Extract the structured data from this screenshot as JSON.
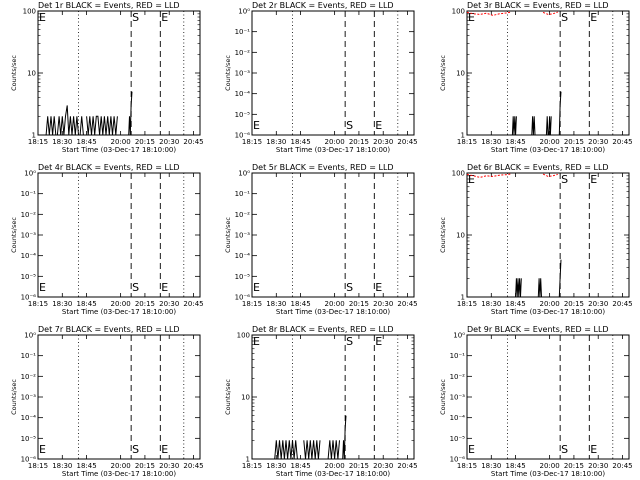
{
  "colors": {
    "events": "#000000",
    "lld": "#ff0000"
  },
  "chart_data": [
    {
      "type": "line",
      "panel": "1r",
      "title": "Det 1r BLACK = Events, RED = LLD",
      "ylabel": "Counts/sec",
      "xlabel": "Start Time (03-Dec-17 18:10:00)",
      "xticks": [
        "18:15",
        "18:30",
        "18:45",
        "20:00",
        "20:15",
        "20:30",
        "20:45"
      ],
      "yscale": "log",
      "ylim": [
        1,
        100
      ],
      "yticks": [
        "1",
        "10",
        "100"
      ],
      "markers": [
        {
          "label": "E",
          "x": 0.0,
          "top": true
        },
        {
          "label": "S",
          "x": 0.575,
          "top": true
        },
        {
          "label": "E",
          "x": 0.755,
          "top": true
        }
      ],
      "dotted_x": [
        0.25,
        0.9
      ],
      "series": [
        {
          "name": "BLACK = Events",
          "color": "#000000",
          "segments": [
            {
              "x": [
                0.05,
                0.06,
                0.07,
                0.08,
                0.09,
                0.1,
                0.11,
                0.12,
                0.13,
                0.14,
                0.15,
                0.16,
                0.17,
                0.18,
                0.19,
                0.2,
                0.21,
                0.22,
                0.23,
                0.24,
                0.25,
                0.26,
                0.27,
                0.28
              ],
              "y": [
                1,
                2,
                1,
                2,
                1,
                2,
                1,
                1,
                2,
                1,
                2,
                1,
                2,
                3,
                1,
                2,
                1,
                2,
                1,
                2,
                1,
                1,
                2,
                1
              ]
            },
            {
              "x": [
                0.3,
                0.31,
                0.32,
                0.33,
                0.34,
                0.35,
                0.36,
                0.37,
                0.38,
                0.39,
                0.4,
                0.41,
                0.42,
                0.43,
                0.44,
                0.45,
                0.46,
                0.47,
                0.48,
                0.49
              ],
              "y": [
                2,
                1,
                2,
                1,
                2,
                1,
                2,
                2,
                1,
                2,
                1,
                2,
                1,
                2,
                1,
                2,
                1,
                2,
                1,
                2
              ]
            },
            {
              "x": [
                0.56,
                0.565,
                0.57,
                0.575,
                0.58
              ],
              "y": [
                1,
                2,
                1,
                3,
                5
              ]
            }
          ]
        }
      ]
    },
    {
      "type": "line",
      "panel": "2r",
      "title": "Det 2r BLACK = Events, RED = LLD",
      "ylabel": "Counts/sec",
      "xlabel": "Start Time (03-Dec-17 18:10:00)",
      "xticks": [
        "18:15",
        "18:30",
        "18:45",
        "20:00",
        "20:15",
        "20:30",
        "20:45"
      ],
      "yscale": "log",
      "ylim": [
        1,
        1e-06
      ],
      "yticks": [
        "10⁻⁶",
        "10⁻⁵",
        "10⁻⁴",
        "10⁻³",
        "10⁻²",
        "10⁻¹",
        "10⁰"
      ],
      "markers": [
        {
          "label": "E",
          "x": 0.0,
          "top": false
        },
        {
          "label": "S",
          "x": 0.575,
          "top": false
        },
        {
          "label": "E",
          "x": 0.755,
          "top": false
        }
      ],
      "dotted_x": [
        0.25,
        0.9
      ],
      "series": []
    },
    {
      "type": "line",
      "panel": "3r",
      "title": "Det 3r BLACK = Events, RED = LLD",
      "ylabel": "Counts/sec",
      "xlabel": "Start Time (03-Dec-17 18:10:00)",
      "xticks": [
        "18:15",
        "18:30",
        "18:45",
        "20:00",
        "20:15",
        "20:30",
        "20:45"
      ],
      "yscale": "log",
      "ylim": [
        1,
        100
      ],
      "yticks": [
        "1",
        "10",
        "100"
      ],
      "markers": [
        {
          "label": "E",
          "x": 0.0,
          "top": true
        },
        {
          "label": "S",
          "x": 0.575,
          "top": true
        },
        {
          "label": "E",
          "x": 0.755,
          "top": true
        }
      ],
      "dotted_x": [
        0.25,
        0.9
      ],
      "series": [
        {
          "name": "BLACK = Events",
          "color": "#000000",
          "segments": [
            {
              "x": [
                0.28,
                0.285,
                0.29,
                0.295,
                0.3,
                0.305
              ],
              "y": [
                1,
                2,
                1,
                2,
                1,
                2
              ]
            },
            {
              "x": [
                0.4,
                0.405,
                0.41,
                0.415,
                0.42
              ],
              "y": [
                1,
                2,
                1,
                2,
                1
              ]
            },
            {
              "x": [
                0.49,
                0.495,
                0.5,
                0.505,
                0.51,
                0.515,
                0.52
              ],
              "y": [
                1,
                2,
                1,
                1,
                2,
                1,
                2
              ]
            },
            {
              "x": [
                0.57,
                0.575,
                0.58
              ],
              "y": [
                1,
                3,
                5
              ]
            }
          ]
        },
        {
          "name": "RED = LLD",
          "color": "#ff0000",
          "segments": [
            {
              "x": [
                0.0,
                0.04,
                0.08,
                0.12,
                0.16,
                0.2,
                0.24,
                0.27
              ],
              "y": [
                95,
                90,
                88,
                92,
                85,
                90,
                93,
                96
              ]
            },
            {
              "x": [
                0.47,
                0.5,
                0.53,
                0.56
              ],
              "y": [
                95,
                88,
                90,
                96
              ]
            }
          ]
        }
      ]
    },
    {
      "type": "line",
      "panel": "4r",
      "title": "Det 4r BLACK = Events, RED = LLD",
      "ylabel": "Counts/sec",
      "xlabel": "Start Time (03-Dec-17 18:10:00)",
      "xticks": [
        "18:15",
        "18:30",
        "18:45",
        "20:00",
        "20:15",
        "20:30",
        "20:45"
      ],
      "yscale": "log",
      "ylim": [
        1,
        1e-06
      ],
      "yticks": [
        "10⁻⁶",
        "10⁻⁵",
        "10⁻⁴",
        "10⁻³",
        "10⁻²",
        "10⁻¹",
        "10⁰"
      ],
      "markers": [
        {
          "label": "E",
          "x": 0.0,
          "top": false
        },
        {
          "label": "S",
          "x": 0.575,
          "top": false
        },
        {
          "label": "E",
          "x": 0.755,
          "top": false
        }
      ],
      "dotted_x": [
        0.25,
        0.9
      ],
      "series": []
    },
    {
      "type": "line",
      "panel": "5r",
      "title": "Det 5r BLACK = Events, RED = LLD",
      "ylabel": "Counts/sec",
      "xlabel": "Start Time (03-Dec-17 18:10:00)",
      "xticks": [
        "18:15",
        "18:30",
        "18:45",
        "20:00",
        "20:15",
        "20:30",
        "20:45"
      ],
      "yscale": "log",
      "ylim": [
        1,
        1e-06
      ],
      "yticks": [
        "10⁻⁶",
        "10⁻⁵",
        "10⁻⁴",
        "10⁻³",
        "10⁻²",
        "10⁻¹",
        "10⁰"
      ],
      "markers": [
        {
          "label": "E",
          "x": 0.0,
          "top": false
        },
        {
          "label": "S",
          "x": 0.575,
          "top": false
        },
        {
          "label": "E",
          "x": 0.755,
          "top": false
        }
      ],
      "dotted_x": [
        0.25,
        0.9
      ],
      "series": []
    },
    {
      "type": "line",
      "panel": "6r",
      "title": "Det 6r BLACK = Events, RED = LLD",
      "ylabel": "Counts/sec",
      "xlabel": "Start Time (03-Dec-17 18:10:00)",
      "xticks": [
        "18:15",
        "18:30",
        "18:45",
        "20:00",
        "20:15",
        "20:30",
        "20:45"
      ],
      "yscale": "log",
      "ylim": [
        1,
        100
      ],
      "yticks": [
        "1",
        "10",
        "100"
      ],
      "markers": [
        {
          "label": "E",
          "x": 0.0,
          "top": true
        },
        {
          "label": "S",
          "x": 0.575,
          "top": true
        },
        {
          "label": "E",
          "x": 0.755,
          "top": true
        }
      ],
      "dotted_x": [
        0.25,
        0.9
      ],
      "series": [
        {
          "name": "BLACK = Events",
          "color": "#000000",
          "segments": [
            {
              "x": [
                0.3,
                0.305,
                0.31,
                0.315,
                0.32,
                0.325,
                0.33,
                0.335
              ],
              "y": [
                1,
                2,
                1,
                2,
                1,
                2,
                1,
                2
              ]
            },
            {
              "x": [
                0.44,
                0.445,
                0.45,
                0.455,
                0.46
              ],
              "y": [
                1,
                2,
                1,
                2,
                1
              ]
            },
            {
              "x": [
                0.57,
                0.575,
                0.58
              ],
              "y": [
                1,
                2,
                4
              ]
            }
          ]
        },
        {
          "name": "RED = LLD",
          "color": "#ff0000",
          "segments": [
            {
              "x": [
                0.0,
                0.04,
                0.08,
                0.12,
                0.16,
                0.2,
                0.24,
                0.27
              ],
              "y": [
                95,
                90,
                85,
                90,
                88,
                92,
                94,
                96
              ]
            },
            {
              "x": [
                0.47,
                0.5,
                0.53,
                0.56
              ],
              "y": [
                96,
                88,
                90,
                95
              ]
            }
          ]
        }
      ]
    },
    {
      "type": "line",
      "panel": "7r",
      "title": "Det 7r BLACK = Events, RED = LLD",
      "ylabel": "Counts/sec",
      "xlabel": "Start Time (03-Dec-17 18:10:00)",
      "xticks": [
        "18:15",
        "18:30",
        "18:45",
        "20:00",
        "20:15",
        "20:30",
        "20:45"
      ],
      "yscale": "log",
      "ylim": [
        1,
        1e-06
      ],
      "yticks": [
        "10⁻⁶",
        "10⁻⁵",
        "10⁻⁴",
        "10⁻³",
        "10⁻²",
        "10⁻¹",
        "10⁰"
      ],
      "markers": [
        {
          "label": "E",
          "x": 0.0,
          "top": false
        },
        {
          "label": "S",
          "x": 0.575,
          "top": false
        },
        {
          "label": "E",
          "x": 0.755,
          "top": false
        }
      ],
      "dotted_x": [
        0.25,
        0.9
      ],
      "series": []
    },
    {
      "type": "line",
      "panel": "8r",
      "title": "Det 8r BLACK = Events, RED = LLD",
      "ylabel": "Counts/sec",
      "xlabel": "Start Time (03-Dec-17 18:10:00)",
      "xticks": [
        "18:15",
        "18:30",
        "18:45",
        "20:00",
        "20:15",
        "20:30",
        "20:45"
      ],
      "yscale": "log",
      "ylim": [
        1,
        100
      ],
      "yticks": [
        "1",
        "10",
        "100"
      ],
      "markers": [
        {
          "label": "E",
          "x": 0.0,
          "top": true
        },
        {
          "label": "S",
          "x": 0.575,
          "top": true
        },
        {
          "label": "E",
          "x": 0.755,
          "top": true
        }
      ],
      "dotted_x": [
        0.25,
        0.9
      ],
      "series": [
        {
          "name": "BLACK = Events",
          "color": "#000000",
          "segments": [
            {
              "x": [
                0.14,
                0.15,
                0.16,
                0.17,
                0.18,
                0.19,
                0.2,
                0.21,
                0.22,
                0.23,
                0.24,
                0.25,
                0.26,
                0.27,
                0.28
              ],
              "y": [
                1,
                2,
                1,
                2,
                1,
                2,
                1,
                2,
                1,
                2,
                1,
                2,
                1,
                2,
                1
              ]
            },
            {
              "x": [
                0.32,
                0.33,
                0.34,
                0.35,
                0.36,
                0.37,
                0.38,
                0.39,
                0.4,
                0.41,
                0.42
              ],
              "y": [
                2,
                1,
                2,
                1,
                2,
                1,
                2,
                1,
                2,
                1,
                2
              ]
            },
            {
              "x": [
                0.47,
                0.48,
                0.49,
                0.5,
                0.51,
                0.52,
                0.53,
                0.54
              ],
              "y": [
                1,
                2,
                1,
                2,
                1,
                2,
                1,
                2
              ]
            },
            {
              "x": [
                0.56,
                0.565,
                0.57,
                0.575,
                0.58
              ],
              "y": [
                1,
                2,
                1,
                3,
                5
              ]
            }
          ]
        }
      ]
    },
    {
      "type": "line",
      "panel": "9r",
      "title": "Det 9r BLACK = Events, RED = LLD",
      "ylabel": "Counts/sec",
      "xlabel": "Start Time (03-Dec-17 18:10:00)",
      "xticks": [
        "18:15",
        "18:30",
        "18:45",
        "20:00",
        "20:15",
        "20:30",
        "20:45"
      ],
      "yscale": "log",
      "ylim": [
        1,
        1e-06
      ],
      "yticks": [
        "10⁻⁶",
        "10⁻⁵",
        "10⁻⁴",
        "10⁻³",
        "10⁻²",
        "10⁻¹",
        "10⁰"
      ],
      "markers": [
        {
          "label": "E",
          "x": 0.0,
          "top": false
        },
        {
          "label": "S",
          "x": 0.575,
          "top": false
        },
        {
          "label": "E",
          "x": 0.755,
          "top": false
        }
      ],
      "dotted_x": [
        0.25,
        0.9
      ],
      "series": []
    }
  ]
}
